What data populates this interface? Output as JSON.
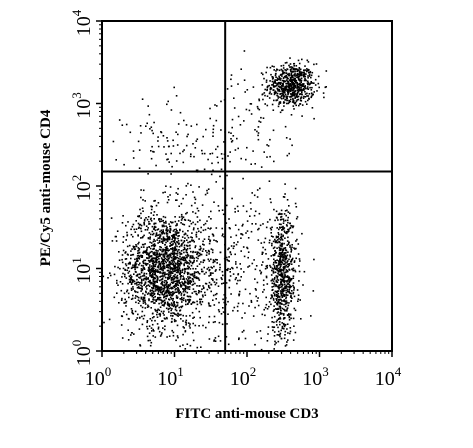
{
  "chart_data": {
    "type": "scatter",
    "title": "",
    "xlabel": "FITC anti-mouse CD3",
    "ylabel": "PE/Cy5 anti-mouse CD4",
    "xscale": "log",
    "yscale": "log",
    "xlim": [
      1,
      10000
    ],
    "ylim": [
      1,
      10000
    ],
    "x_ticks": [
      {
        "base": "10",
        "exp": "0",
        "value": 1
      },
      {
        "base": "10",
        "exp": "1",
        "value": 10
      },
      {
        "base": "10",
        "exp": "2",
        "value": 100
      },
      {
        "base": "10",
        "exp": "3",
        "value": 1000
      },
      {
        "base": "10",
        "exp": "4",
        "value": 10000
      }
    ],
    "y_ticks": [
      {
        "base": "10",
        "exp": "0",
        "value": 1
      },
      {
        "base": "10",
        "exp": "1",
        "value": 10
      },
      {
        "base": "10",
        "exp": "2",
        "value": 100
      },
      {
        "base": "10",
        "exp": "3",
        "value": 1000
      },
      {
        "base": "10",
        "exp": "4",
        "value": 10000
      }
    ],
    "quadrant_gates": {
      "x": 50,
      "y": 150
    },
    "grid": false,
    "point_color": "#000000",
    "populations": [
      {
        "center_x": 400,
        "center_y": 1700,
        "spread_x_decades": 0.16,
        "spread_y_decades": 0.13,
        "points": 650
      },
      {
        "center_x": 7,
        "center_y": 10,
        "spread_x_decades": 0.28,
        "spread_y_decades": 0.35,
        "points": 1700
      },
      {
        "center_x": 300,
        "center_y": 8,
        "spread_x_decades": 0.1,
        "spread_y_decades": 0.38,
        "points": 700
      },
      {
        "center_x": 40,
        "center_y": 10,
        "spread_x_decades": 0.5,
        "spread_y_decades": 0.5,
        "points": 500
      },
      {
        "center_x": 10,
        "center_y": 300,
        "spread_x_decades": 0.35,
        "spread_y_decades": 0.3,
        "points": 110
      },
      {
        "center_x": 100,
        "center_y": 500,
        "spread_x_decades": 0.3,
        "spread_y_decades": 0.35,
        "points": 90
      }
    ]
  }
}
